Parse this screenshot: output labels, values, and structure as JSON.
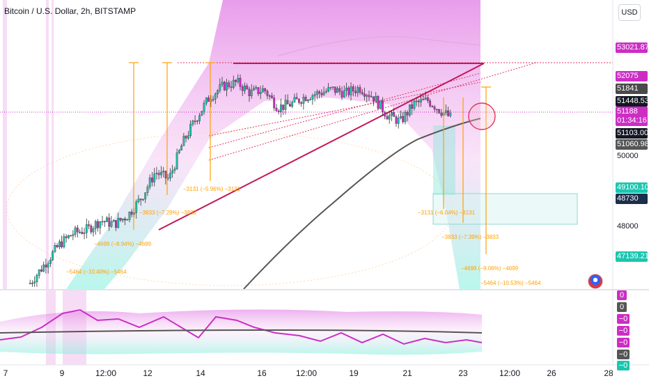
{
  "header": {
    "title": "Bitcoin / U.S. Dollar, 2h, BITSTAMP",
    "currency_button": "USD"
  },
  "price_tags": [
    {
      "label": "53021.87",
      "color": "#cc2ec4"
    },
    {
      "label": "52075",
      "color": "#cc2ec4"
    },
    {
      "label": "51841",
      "color": "#4a4a4a"
    },
    {
      "label": "51448.53",
      "color": "#131722"
    },
    {
      "label": "51188",
      "color": "#cc2ec4"
    },
    {
      "label": "01:34:16",
      "color": "#cc2ec4"
    },
    {
      "label": "51103.00",
      "color": "#131722"
    },
    {
      "label": "51060.98",
      "color": "#555555"
    },
    {
      "label": "50000",
      "color": ""
    },
    {
      "label": "49100.10",
      "color": "#1bc6b0"
    },
    {
      "label": "48730",
      "color": "#1d2e4a"
    },
    {
      "label": "48000",
      "color": ""
    },
    {
      "label": "47139.21",
      "color": "#1bc6b0"
    }
  ],
  "oscillator_tags": [
    {
      "label": "0",
      "color": "#cc2ec4"
    },
    {
      "label": "0",
      "color": "#555555"
    },
    {
      "label": "−0",
      "color": "#cc2ec4"
    },
    {
      "label": "−0",
      "color": "#cc2ec4"
    },
    {
      "label": "−0",
      "color": "#cc2ec4"
    },
    {
      "label": "−0",
      "color": "#555555"
    },
    {
      "label": "−0",
      "color": "#1bc6b0"
    }
  ],
  "date_axis": [
    "7",
    "9",
    "12:00",
    "12",
    "14",
    "16",
    "12:00",
    "19",
    "21",
    "23",
    "12:00",
    "26",
    "28"
  ],
  "annotations": [
    "−5464 (−10.40%) −5464",
    "−4699 (−8.94%) −4699",
    "−3833 (−7.29%) −3833",
    "−3131 (−5.96%) −3131",
    "−3131 (−6.04%) −3131",
    "−3833 (−7.39%) −3833",
    "−4699 (−9.06%) −4699",
    "−5464 (−10.53%) −5464"
  ],
  "colors": {
    "bull": "#1bc6b0",
    "bear": "#cc2ec4",
    "trendline": "#c2185b",
    "ma_line": "#555555",
    "projection": "#ffa000"
  },
  "chart_data": {
    "type": "candlestick",
    "title": "Bitcoin / U.S. Dollar, 2h, BITSTAMP",
    "x_ticks": [
      "7",
      "9",
      "12:00",
      "12",
      "14",
      "16",
      "12:00",
      "19",
      "21",
      "23",
      "12:00",
      "26",
      "28"
    ],
    "y_ticks": [
      50000,
      48000
    ],
    "ylim": [
      46500,
      54300
    ],
    "series": [
      {
        "name": "price",
        "x": [
          7.9,
          8.5,
          9.0,
          9.5,
          10.0,
          10.5,
          11.0,
          11.5,
          12.0,
          12.5,
          13.0,
          13.5,
          14.0,
          14.5,
          15.0,
          15.5,
          16.0,
          16.5,
          17.0,
          17.5,
          18.0,
          18.5,
          19.0,
          19.5,
          20.0,
          20.5,
          21.0,
          21.5,
          22.0,
          22.5,
          23.0,
          23.4
        ],
        "values": [
          46600,
          47200,
          47700,
          48000,
          48100,
          48350,
          48250,
          48500,
          49000,
          49700,
          49500,
          50500,
          51200,
          51800,
          52100,
          52200,
          51900,
          52000,
          51500,
          51600,
          51800,
          51900,
          52000,
          51900,
          52050,
          51800,
          51300,
          51100,
          51600,
          51700,
          51400,
          51188
        ]
      },
      {
        "name": "long moving average",
        "x": [
          16.0,
          17.0,
          18.0,
          19.0,
          20.0,
          21.0,
          22.0,
          23.0,
          23.4
        ],
        "values": [
          46500,
          47100,
          47800,
          48700,
          49550,
          50350,
          50750,
          51000,
          51103
        ]
      }
    ],
    "levels": {
      "triangle_top": 52300,
      "current_price": 51188,
      "support_box": [
        48100,
        49100
      ]
    },
    "oscillator": {
      "ylim": [
        -1,
        1
      ],
      "value": 0
    }
  }
}
